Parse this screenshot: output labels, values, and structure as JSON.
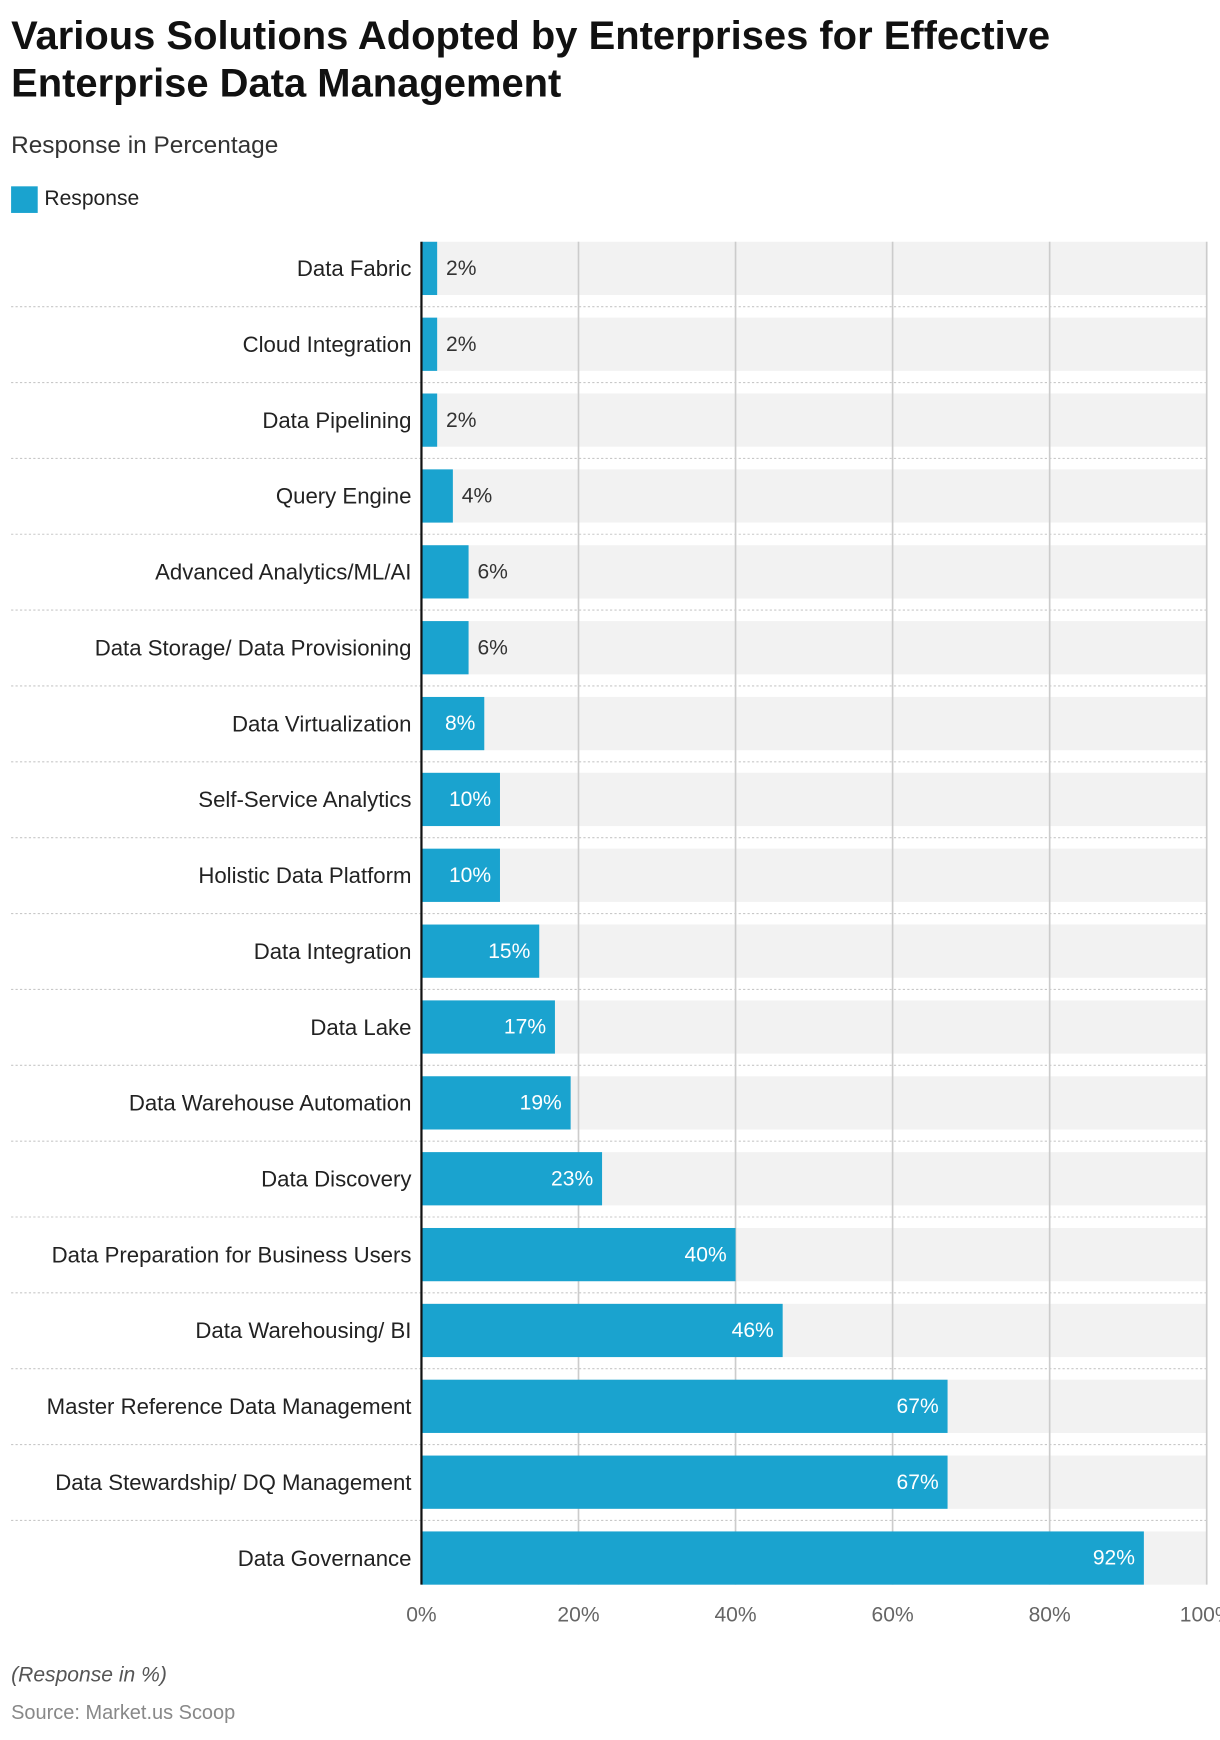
{
  "title": "Various Solutions Adopted by Enterprises for Effective Enterprise Data Management",
  "subtitle": "Response in Percentage",
  "note": "(Response in %)",
  "source": "Source: Market.us Scoop",
  "colors": {
    "bar": "#1aa3cf",
    "band": "#f2f2f2",
    "grid": "#cccccc"
  },
  "chart_data": {
    "type": "bar",
    "orientation": "horizontal",
    "legend": {
      "entries": [
        "Response"
      ],
      "placement": "top-left"
    },
    "categories": [
      "Data Fabric",
      "Cloud Integration",
      "Data Pipelining",
      "Query Engine",
      "Advanced Analytics/ML/AI",
      "Data Storage/ Data Provisioning",
      "Data Virtualization",
      "Self-Service Analytics",
      "Holistic Data Platform",
      "Data Integration",
      "Data Lake",
      "Data Warehouse Automation",
      "Data Discovery",
      "Data Preparation for Business Users",
      "Data Warehousing/ BI",
      "Master Reference Data Management",
      "Data Stewardship/ DQ Management",
      "Data Governance"
    ],
    "series": [
      {
        "name": "Response",
        "values": [
          2,
          2,
          2,
          4,
          6,
          6,
          8,
          10,
          10,
          15,
          17,
          19,
          23,
          40,
          46,
          67,
          67,
          92
        ]
      }
    ],
    "data_labels": [
      "2%",
      "2%",
      "2%",
      "4%",
      "6%",
      "6%",
      "8%",
      "10%",
      "10%",
      "15%",
      "17%",
      "19%",
      "23%",
      "40%",
      "46%",
      "67%",
      "67%",
      "92%"
    ],
    "xlim": [
      0,
      100
    ],
    "xticks": [
      "0%",
      "20%",
      "40%",
      "60%",
      "80%",
      "100%"
    ],
    "grid": true
  }
}
